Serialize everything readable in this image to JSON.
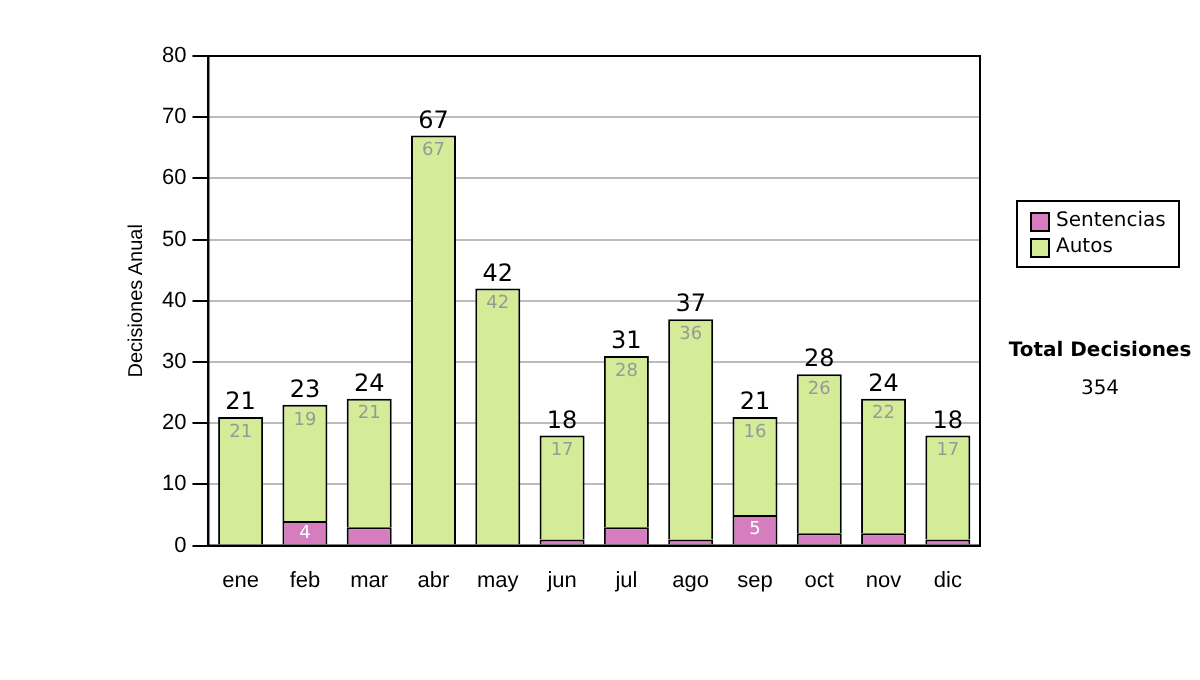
{
  "chart_data": {
    "type": "bar",
    "stacked": true,
    "ylabel": "Decisiones Anual",
    "categories": [
      "ene",
      "feb",
      "mar",
      "abr",
      "may",
      "jun",
      "jul",
      "ago",
      "sep",
      "oct",
      "nov",
      "dic"
    ],
    "series": [
      {
        "name": "Sentencias",
        "color": "#d67dbf",
        "values": [
          0,
          4,
          3,
          0,
          0,
          1,
          3,
          1,
          5,
          2,
          2,
          1
        ],
        "value_labels": [
          null,
          "4",
          null,
          null,
          null,
          null,
          null,
          null,
          "5",
          null,
          null,
          null
        ]
      },
      {
        "name": "Autos",
        "color": "#d4eb98",
        "values": [
          21,
          19,
          21,
          67,
          42,
          17,
          28,
          36,
          16,
          26,
          22,
          17
        ],
        "value_labels": [
          "21",
          "19",
          "21",
          "67",
          "42",
          "17",
          "28",
          "36",
          "16",
          "26",
          "22",
          "17"
        ]
      }
    ],
    "totals": [
      "21",
      "23",
      "24",
      "67",
      "42",
      "18",
      "31",
      "37",
      "21",
      "28",
      "24",
      "18"
    ],
    "ylim": [
      0,
      80
    ],
    "yticks": [
      0,
      10,
      20,
      30,
      40,
      50,
      60,
      70,
      80
    ],
    "grid": "y",
    "legend": "right",
    "annotations": [
      "Total Decisiones",
      "354"
    ]
  }
}
